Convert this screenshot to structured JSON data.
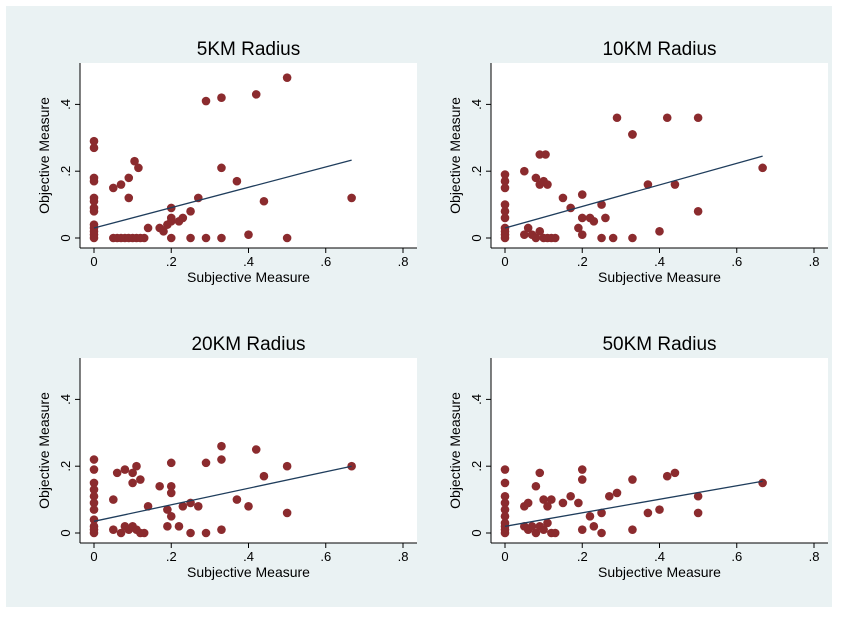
{
  "colors": {
    "background": "#eaf2f3",
    "plot_area": "#ffffff",
    "marker": "#8b2b2e",
    "fit_line": "#1f3d5c"
  },
  "chart_data": [
    {
      "type": "scatter",
      "title": "5KM Radius",
      "xlabel": "Subjective Measure",
      "ylabel": "Objective Measure",
      "xlim": [
        0,
        0.8
      ],
      "ylim": [
        0,
        0.5
      ],
      "xticks": [
        0,
        0.2,
        0.4,
        0.6,
        0.8
      ],
      "xtick_labels": [
        "0",
        ".2",
        ".4",
        ".6",
        ".8"
      ],
      "yticks": [
        0,
        0.2,
        0.4
      ],
      "ytick_labels": [
        "0",
        ".2",
        ".4"
      ],
      "grid": false,
      "fit_line": {
        "x": [
          0,
          0.667
        ],
        "y": [
          0.03,
          0.233
        ]
      },
      "points": [
        [
          0,
          0.29
        ],
        [
          0,
          0.27
        ],
        [
          0,
          0.18
        ],
        [
          0,
          0.17
        ],
        [
          0,
          0.12
        ],
        [
          0,
          0.11
        ],
        [
          0,
          0.09
        ],
        [
          0,
          0.08
        ],
        [
          0,
          0.04
        ],
        [
          0,
          0.03
        ],
        [
          0,
          0.02
        ],
        [
          0,
          0.01
        ],
        [
          0,
          0.0
        ],
        [
          0.05,
          0.15
        ],
        [
          0.07,
          0.16
        ],
        [
          0.09,
          0.18
        ],
        [
          0.09,
          0.12
        ],
        [
          0.105,
          0.23
        ],
        [
          0.115,
          0.21
        ],
        [
          0.05,
          0.0
        ],
        [
          0.06,
          0.0
        ],
        [
          0.07,
          0.0
        ],
        [
          0.08,
          0.0
        ],
        [
          0.09,
          0.0
        ],
        [
          0.1,
          0.0
        ],
        [
          0.11,
          0.0
        ],
        [
          0.12,
          0.0
        ],
        [
          0.13,
          0.0
        ],
        [
          0.14,
          0.03
        ],
        [
          0.17,
          0.03
        ],
        [
          0.18,
          0.02
        ],
        [
          0.19,
          0.04
        ],
        [
          0.2,
          0.05
        ],
        [
          0.2,
          0.09
        ],
        [
          0.2,
          0.06
        ],
        [
          0.22,
          0.05
        ],
        [
          0.23,
          0.06
        ],
        [
          0.25,
          0.08
        ],
        [
          0.27,
          0.12
        ],
        [
          0.2,
          0.0
        ],
        [
          0.25,
          0.0
        ],
        [
          0.29,
          0.0
        ],
        [
          0.29,
          0.41
        ],
        [
          0.33,
          0.42
        ],
        [
          0.33,
          0.21
        ],
        [
          0.33,
          0.0
        ],
        [
          0.37,
          0.17
        ],
        [
          0.4,
          0.01
        ],
        [
          0.42,
          0.43
        ],
        [
          0.44,
          0.11
        ],
        [
          0.5,
          0.48
        ],
        [
          0.5,
          0.0
        ],
        [
          0.667,
          0.12
        ]
      ]
    },
    {
      "type": "scatter",
      "title": "10KM Radius",
      "xlabel": "Subjective Measure",
      "ylabel": "Objective Measure",
      "xlim": [
        0,
        0.8
      ],
      "ylim": [
        0,
        0.5
      ],
      "xticks": [
        0,
        0.2,
        0.4,
        0.6,
        0.8
      ],
      "xtick_labels": [
        "0",
        ".2",
        ".4",
        ".6",
        ".8"
      ],
      "yticks": [
        0,
        0.2,
        0.4
      ],
      "ytick_labels": [
        "0",
        ".2",
        ".4"
      ],
      "grid": false,
      "fit_line": {
        "x": [
          0,
          0.667
        ],
        "y": [
          0.03,
          0.245
        ]
      },
      "points": [
        [
          0,
          0.19
        ],
        [
          0,
          0.17
        ],
        [
          0,
          0.15
        ],
        [
          0,
          0.1
        ],
        [
          0,
          0.08
        ],
        [
          0,
          0.06
        ],
        [
          0,
          0.03
        ],
        [
          0,
          0.02
        ],
        [
          0,
          0.01
        ],
        [
          0,
          0.0
        ],
        [
          0.05,
          0.2
        ],
        [
          0.08,
          0.18
        ],
        [
          0.09,
          0.16
        ],
        [
          0.1,
          0.17
        ],
        [
          0.09,
          0.25
        ],
        [
          0.105,
          0.25
        ],
        [
          0.11,
          0.16
        ],
        [
          0.05,
          0.01
        ],
        [
          0.06,
          0.03
        ],
        [
          0.07,
          0.01
        ],
        [
          0.08,
          0.0
        ],
        [
          0.09,
          0.02
        ],
        [
          0.1,
          0.0
        ],
        [
          0.11,
          0.0
        ],
        [
          0.12,
          0.0
        ],
        [
          0.13,
          0.0
        ],
        [
          0.15,
          0.12
        ],
        [
          0.17,
          0.09
        ],
        [
          0.19,
          0.03
        ],
        [
          0.2,
          0.01
        ],
        [
          0.2,
          0.06
        ],
        [
          0.2,
          0.13
        ],
        [
          0.22,
          0.06
        ],
        [
          0.23,
          0.05
        ],
        [
          0.25,
          0.1
        ],
        [
          0.26,
          0.06
        ],
        [
          0.25,
          0.0
        ],
        [
          0.28,
          0.0
        ],
        [
          0.29,
          0.36
        ],
        [
          0.33,
          0.31
        ],
        [
          0.33,
          0.31
        ],
        [
          0.33,
          0.0
        ],
        [
          0.37,
          0.16
        ],
        [
          0.4,
          0.02
        ],
        [
          0.42,
          0.36
        ],
        [
          0.44,
          0.16
        ],
        [
          0.5,
          0.36
        ],
        [
          0.5,
          0.08
        ],
        [
          0.667,
          0.21
        ]
      ]
    },
    {
      "type": "scatter",
      "title": "20KM Radius",
      "xlabel": "Subjective Measure",
      "ylabel": "Objective Measure",
      "xlim": [
        0,
        0.8
      ],
      "ylim": [
        0,
        0.5
      ],
      "xticks": [
        0,
        0.2,
        0.4,
        0.6,
        0.8
      ],
      "xtick_labels": [
        "0",
        ".2",
        ".4",
        ".6",
        ".8"
      ],
      "yticks": [
        0,
        0.2,
        0.4
      ],
      "ytick_labels": [
        "0",
        ".2",
        ".4"
      ],
      "grid": false,
      "fit_line": {
        "x": [
          0,
          0.667
        ],
        "y": [
          0.035,
          0.2
        ]
      },
      "points": [
        [
          0,
          0.22
        ],
        [
          0,
          0.19
        ],
        [
          0,
          0.15
        ],
        [
          0,
          0.13
        ],
        [
          0,
          0.11
        ],
        [
          0,
          0.09
        ],
        [
          0,
          0.07
        ],
        [
          0,
          0.04
        ],
        [
          0,
          0.02
        ],
        [
          0,
          0.01
        ],
        [
          0,
          0.0
        ],
        [
          0.05,
          0.1
        ],
        [
          0.06,
          0.18
        ],
        [
          0.08,
          0.19
        ],
        [
          0.1,
          0.18
        ],
        [
          0.1,
          0.15
        ],
        [
          0.11,
          0.2
        ],
        [
          0.12,
          0.16
        ],
        [
          0.05,
          0.01
        ],
        [
          0.07,
          0.0
        ],
        [
          0.08,
          0.02
        ],
        [
          0.09,
          0.01
        ],
        [
          0.1,
          0.02
        ],
        [
          0.11,
          0.01
        ],
        [
          0.12,
          0.0
        ],
        [
          0.13,
          0.0
        ],
        [
          0.14,
          0.08
        ],
        [
          0.17,
          0.14
        ],
        [
          0.19,
          0.07
        ],
        [
          0.2,
          0.05
        ],
        [
          0.2,
          0.14
        ],
        [
          0.2,
          0.12
        ],
        [
          0.2,
          0.21
        ],
        [
          0.19,
          0.02
        ],
        [
          0.22,
          0.02
        ],
        [
          0.23,
          0.08
        ],
        [
          0.25,
          0.09
        ],
        [
          0.27,
          0.08
        ],
        [
          0.25,
          0.0
        ],
        [
          0.29,
          0.0
        ],
        [
          0.29,
          0.21
        ],
        [
          0.33,
          0.26
        ],
        [
          0.33,
          0.22
        ],
        [
          0.33,
          0.01
        ],
        [
          0.37,
          0.1
        ],
        [
          0.4,
          0.08
        ],
        [
          0.42,
          0.25
        ],
        [
          0.44,
          0.17
        ],
        [
          0.5,
          0.2
        ],
        [
          0.5,
          0.06
        ],
        [
          0.667,
          0.2
        ]
      ]
    },
    {
      "type": "scatter",
      "title": "50KM Radius",
      "xlabel": "Subjective Measure",
      "ylabel": "Objective Measure",
      "xlim": [
        0,
        0.8
      ],
      "ylim": [
        0,
        0.5
      ],
      "xticks": [
        0,
        0.2,
        0.4,
        0.6,
        0.8
      ],
      "xtick_labels": [
        "0",
        ".2",
        ".4",
        ".6",
        ".8"
      ],
      "yticks": [
        0,
        0.2,
        0.4
      ],
      "ytick_labels": [
        "0",
        ".2",
        ".4"
      ],
      "grid": false,
      "fit_line": {
        "x": [
          0,
          0.667
        ],
        "y": [
          0.02,
          0.155
        ]
      },
      "points": [
        [
          0,
          0.19
        ],
        [
          0,
          0.15
        ],
        [
          0,
          0.11
        ],
        [
          0,
          0.09
        ],
        [
          0,
          0.07
        ],
        [
          0,
          0.05
        ],
        [
          0,
          0.03
        ],
        [
          0,
          0.02
        ],
        [
          0,
          0.01
        ],
        [
          0,
          0.0
        ],
        [
          0.05,
          0.08
        ],
        [
          0.06,
          0.09
        ],
        [
          0.08,
          0.14
        ],
        [
          0.09,
          0.18
        ],
        [
          0.1,
          0.1
        ],
        [
          0.11,
          0.08
        ],
        [
          0.12,
          0.1
        ],
        [
          0.05,
          0.02
        ],
        [
          0.06,
          0.01
        ],
        [
          0.07,
          0.02
        ],
        [
          0.08,
          0.0
        ],
        [
          0.09,
          0.02
        ],
        [
          0.1,
          0.01
        ],
        [
          0.11,
          0.03
        ],
        [
          0.12,
          0.0
        ],
        [
          0.13,
          0.0
        ],
        [
          0.15,
          0.09
        ],
        [
          0.17,
          0.11
        ],
        [
          0.19,
          0.09
        ],
        [
          0.2,
          0.19
        ],
        [
          0.2,
          0.16
        ],
        [
          0.2,
          0.01
        ],
        [
          0.22,
          0.05
        ],
        [
          0.23,
          0.02
        ],
        [
          0.25,
          0.06
        ],
        [
          0.27,
          0.11
        ],
        [
          0.25,
          0.0
        ],
        [
          0.29,
          0.12
        ],
        [
          0.33,
          0.16
        ],
        [
          0.33,
          0.01
        ],
        [
          0.37,
          0.06
        ],
        [
          0.4,
          0.07
        ],
        [
          0.42,
          0.17
        ],
        [
          0.44,
          0.18
        ],
        [
          0.5,
          0.11
        ],
        [
          0.5,
          0.06
        ],
        [
          0.667,
          0.15
        ]
      ]
    }
  ]
}
